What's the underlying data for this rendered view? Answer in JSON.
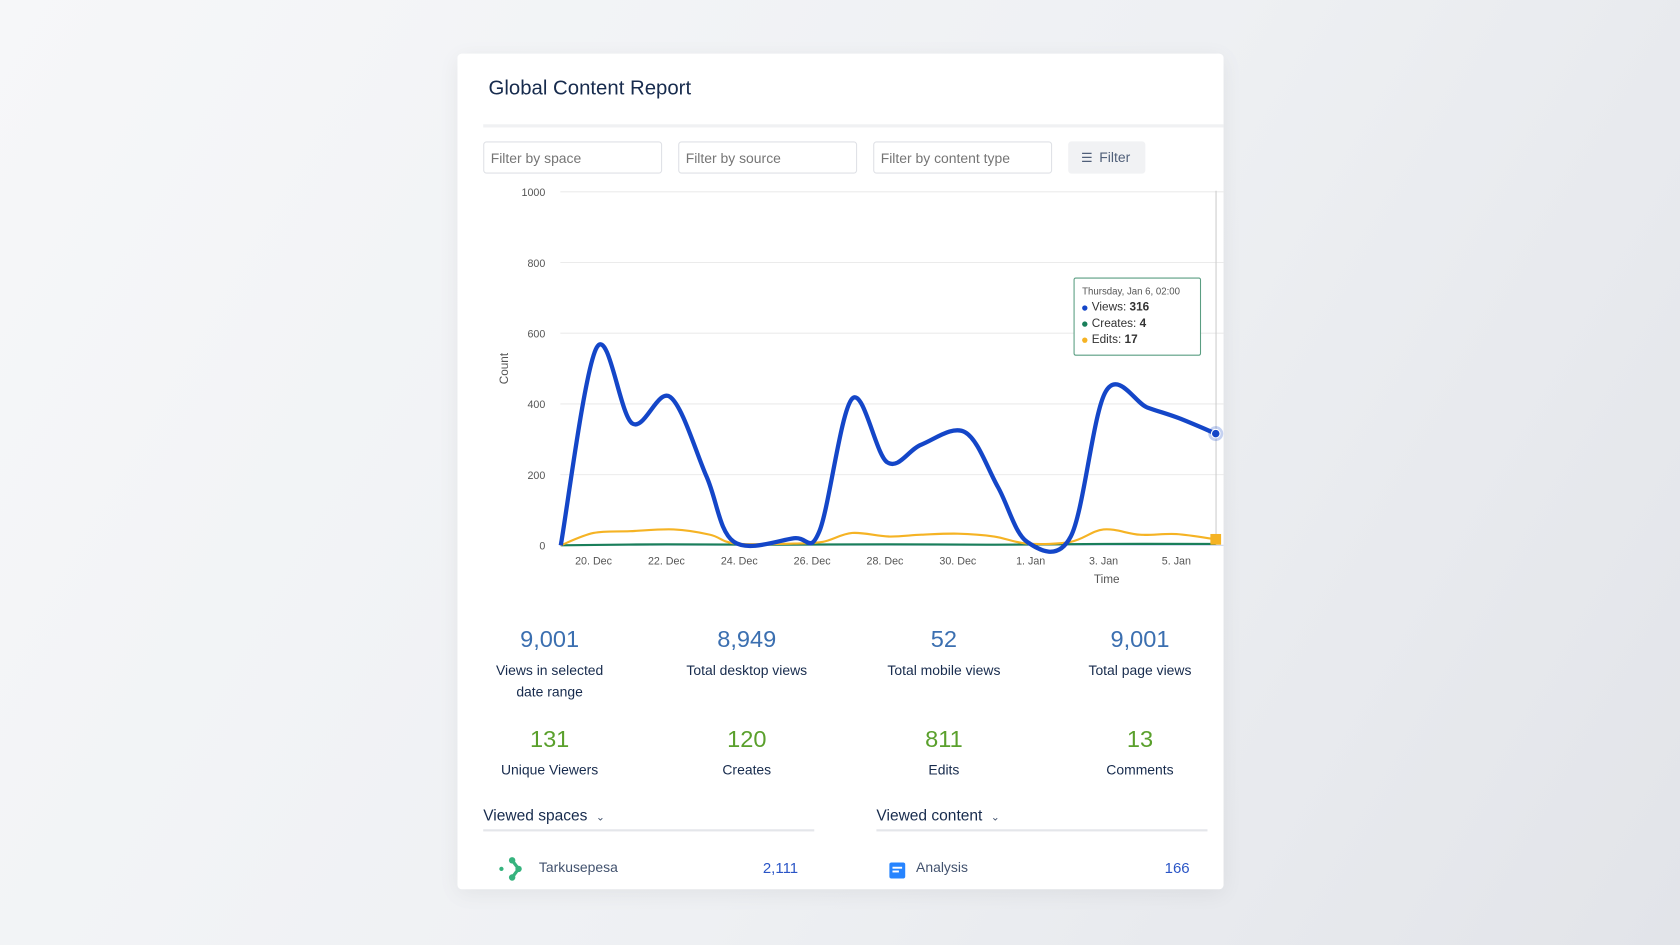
{
  "report": {
    "title": "Global Content Report"
  },
  "filters": {
    "space_placeholder": "Filter by space",
    "source_placeholder": "Filter by source",
    "type_placeholder": "Filter by content type",
    "filter_button": "Filter",
    "filter_icon": "filter-icon"
  },
  "chart_data": {
    "type": "line",
    "xlabel": "Time",
    "ylabel": "Count",
    "ylim": [
      0,
      1000
    ],
    "y_ticks": [
      "0",
      "200",
      "400",
      "600",
      "800",
      "1000"
    ],
    "x_unit": "days since 19 Dec 00:00",
    "x_ticks": [
      {
        "label": "20. Dec",
        "x": 1
      },
      {
        "label": "22. Dec",
        "x": 3
      },
      {
        "label": "24. Dec",
        "x": 5
      },
      {
        "label": "26. Dec",
        "x": 7
      },
      {
        "label": "28. Dec",
        "x": 9
      },
      {
        "label": "30. Dec",
        "x": 11
      },
      {
        "label": "1. Jan",
        "x": 13
      },
      {
        "label": "3. Jan",
        "x": 15
      },
      {
        "label": "5. Jan",
        "x": 17
      }
    ],
    "series": [
      {
        "name": "Views",
        "color": "#1446c8",
        "points": [
          [
            0.1,
            0
          ],
          [
            1.09,
            560
          ],
          [
            2.06,
            345
          ],
          [
            3.1,
            420
          ],
          [
            4.1,
            195
          ],
          [
            4.85,
            10
          ],
          [
            6.5,
            20
          ],
          [
            7.2,
            40
          ],
          [
            8.1,
            415
          ],
          [
            9.06,
            235
          ],
          [
            10,
            285
          ],
          [
            11.2,
            320
          ],
          [
            12.1,
            165
          ],
          [
            12.9,
            10
          ],
          [
            14.1,
            25
          ],
          [
            15.06,
            435
          ],
          [
            16.2,
            390
          ],
          [
            17.06,
            360
          ],
          [
            18.08,
            316
          ]
        ]
      },
      {
        "name": "Edits",
        "color": "#f5b324",
        "points": [
          [
            0.1,
            0
          ],
          [
            1.0,
            35
          ],
          [
            2.0,
            40
          ],
          [
            3.2,
            45
          ],
          [
            4.2,
            30
          ],
          [
            4.9,
            5
          ],
          [
            6.5,
            5
          ],
          [
            7.3,
            10
          ],
          [
            8.1,
            35
          ],
          [
            9.1,
            25
          ],
          [
            10,
            30
          ],
          [
            11,
            33
          ],
          [
            12,
            25
          ],
          [
            12.9,
            5
          ],
          [
            14.1,
            10
          ],
          [
            15.0,
            45
          ],
          [
            16,
            30
          ],
          [
            17,
            32
          ],
          [
            18.08,
            17
          ]
        ]
      },
      {
        "name": "Creates",
        "color": "#1a7f5a",
        "points": [
          [
            0.1,
            0
          ],
          [
            3,
            3
          ],
          [
            6,
            2
          ],
          [
            9,
            3
          ],
          [
            12,
            2
          ],
          [
            15,
            4
          ],
          [
            18.08,
            4
          ]
        ]
      }
    ],
    "tooltip": {
      "date": "Thursday, Jan 6, 02:00",
      "rows": [
        {
          "label": "Views: ",
          "value": "316",
          "color": "#1446c8"
        },
        {
          "label": "Creates: ",
          "value": "4",
          "color": "#1a7f5a"
        },
        {
          "label": "Edits: ",
          "value": "17",
          "color": "#f5b324"
        }
      ]
    }
  },
  "stats": [
    {
      "value": "9,001",
      "label": "Views in selected date range"
    },
    {
      "value": "8,949",
      "label": "Total desktop views"
    },
    {
      "value": "52",
      "label": "Total mobile views"
    },
    {
      "value": "9,001",
      "label": "Total page views"
    },
    {
      "value": "131",
      "label": "Unique Viewers"
    },
    {
      "value": "120",
      "label": "Creates"
    },
    {
      "value": "811",
      "label": "Edits"
    },
    {
      "value": "13",
      "label": "Comments"
    }
  ],
  "viewed_spaces": {
    "title": "Viewed spaces",
    "items": [
      {
        "name": "Tarkusepesa",
        "count": "2,111"
      }
    ]
  },
  "viewed_content": {
    "title": "Viewed content",
    "items": [
      {
        "name": "Analysis",
        "count": "166"
      }
    ]
  }
}
